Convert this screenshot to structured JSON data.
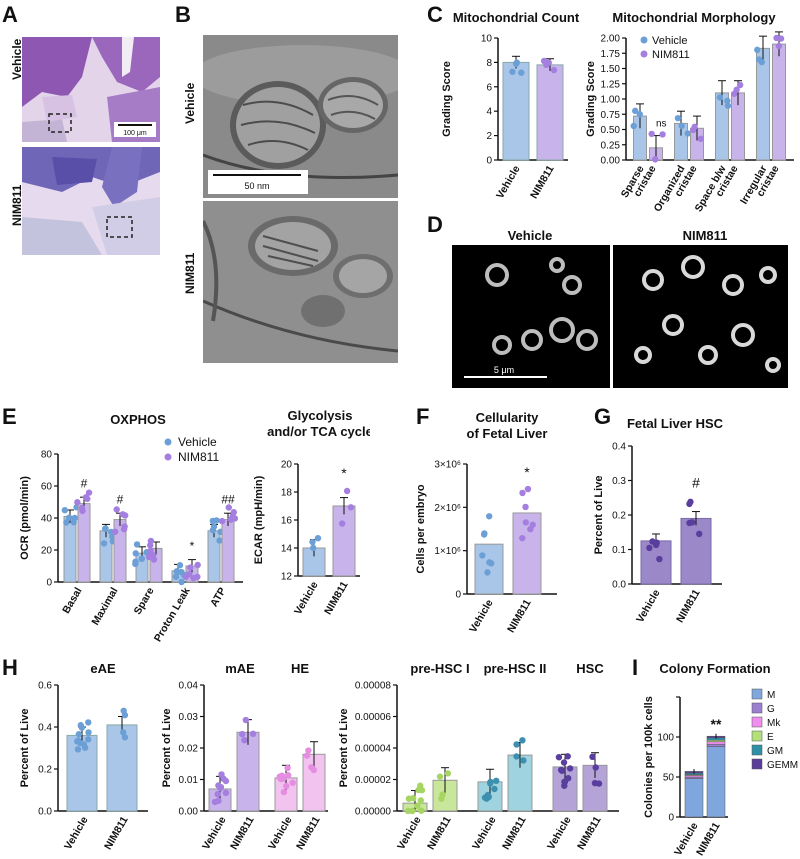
{
  "panels": {
    "A": {
      "letter": "A",
      "row_labels": [
        "Vehicle",
        "NIM811"
      ],
      "scale_bar": "100 μm"
    },
    "B": {
      "letter": "B",
      "row_labels": [
        "Vehicle",
        "NIM811"
      ],
      "scale_bar": "50 nm"
    },
    "C": {
      "letter": "C"
    },
    "D": {
      "letter": "D",
      "col_labels": [
        "Vehicle",
        "NIM811"
      ],
      "scale_bar": "5 μm"
    },
    "E": {
      "letter": "E"
    },
    "F": {
      "letter": "F"
    },
    "G": {
      "letter": "G"
    },
    "H": {
      "letter": "H"
    },
    "I": {
      "letter": "I"
    }
  },
  "colors": {
    "vehicle_blue": "#a9c6e8",
    "vehicle_dot": "#6b9fd6",
    "nim_purple": "#c8b4ea",
    "nim_dot": "#a47fe0",
    "he_pink": "#f3c3f0",
    "prehsc1_green": "#c9e79a",
    "prehsc2_teal": "#9fd3df",
    "hsc_purple": "#b3a3d6",
    "hsc_dot": "#5a3e9e",
    "g_purple": "#9b88c9"
  },
  "chart_data": [
    {
      "id": "C-count",
      "type": "bar",
      "title": "Mitochondrial Count",
      "categories": [
        "Vehicle",
        "NIM811"
      ],
      "values": [
        8.0,
        7.8
      ],
      "ylabel": "Grading Score",
      "ylim": [
        0,
        10
      ],
      "yticks": [
        "0",
        "2",
        "4",
        "6",
        "8",
        "10"
      ]
    },
    {
      "id": "C-morph",
      "type": "bar",
      "title": "Mitochondrial Morphology",
      "categories": [
        "Sparse cristae",
        "Organized cristae",
        "Space b/w cristae",
        "Irregular cristae"
      ],
      "series": [
        {
          "name": "Vehicle",
          "values": [
            0.72,
            0.6,
            1.1,
            1.83
          ]
        },
        {
          "name": "NIM811",
          "values": [
            0.2,
            0.52,
            1.1,
            1.9
          ]
        }
      ],
      "ylabel": "Grading Score",
      "ylim": [
        0,
        2.0
      ],
      "yticks": [
        "0.00",
        "0.25",
        "0.50",
        "0.75",
        "1.00",
        "1.25",
        "1.50",
        "1.75",
        "2.00"
      ],
      "annotations": [
        "ns"
      ],
      "legend": "top-left"
    },
    {
      "id": "E-oxphos",
      "type": "bar",
      "title": "OXPHOS",
      "categories": [
        "Basal",
        "Maximal",
        "Spare",
        "Proton Leak",
        "ATP"
      ],
      "series": [
        {
          "name": "Vehicle",
          "values": [
            41,
            32,
            18,
            7,
            32
          ]
        },
        {
          "name": "NIM811",
          "values": [
            49,
            39,
            21,
            10,
            39
          ]
        }
      ],
      "ylabel": "OCR (pmol/min)",
      "ylim": [
        0,
        80
      ],
      "yticks": [
        "0",
        "20",
        "40",
        "60",
        "80"
      ],
      "annotations": [
        "#",
        "#",
        "*",
        "##"
      ],
      "legend": "top-right"
    },
    {
      "id": "E-ecar",
      "type": "bar",
      "title": "Glycolysis and/or TCA cycle",
      "title_lines": [
        "Glycolysis",
        "and/or TCA cycle"
      ],
      "categories": [
        "Vehicle",
        "NIM811"
      ],
      "values": [
        14.0,
        17.0
      ],
      "ylabel": "ECAR (mpH/min)",
      "ylim": [
        12,
        20
      ],
      "yticks": [
        "12",
        "14",
        "16",
        "18",
        "20"
      ],
      "annotations": [
        "*"
      ]
    },
    {
      "id": "F",
      "type": "bar",
      "title": "Cellularity of Fetal Liver",
      "title_lines": [
        "Cellularity",
        "of Fetal Liver"
      ],
      "categories": [
        "Vehicle",
        "NIM811"
      ],
      "values": [
        1150000,
        1870000
      ],
      "ylabel": "Cells per embryo",
      "ylim": [
        0,
        3000000
      ],
      "yticks": [
        "0",
        "1×10⁶",
        "2×10⁶",
        "3×10⁶"
      ],
      "annotations": [
        "*"
      ]
    },
    {
      "id": "G",
      "type": "bar",
      "title": "Fetal Liver HSC",
      "categories": [
        "Vehicle",
        "NIM811"
      ],
      "values": [
        0.125,
        0.19
      ],
      "ylabel": "Percent of Live",
      "ylim": [
        0,
        0.4
      ],
      "yticks": [
        "0.0",
        "0.1",
        "0.2",
        "0.3",
        "0.4"
      ],
      "annotations": [
        "#"
      ]
    },
    {
      "id": "H-eAE",
      "type": "bar",
      "title": "eAE",
      "categories": [
        "Vehicle",
        "NIM811"
      ],
      "values": [
        0.36,
        0.41
      ],
      "ylabel": "Percent of Live",
      "ylim": [
        0,
        0.6
      ],
      "yticks": [
        "0.0",
        "0.2",
        "0.4",
        "0.6"
      ]
    },
    {
      "id": "H-mAE-HE",
      "type": "bar",
      "titles": [
        "mAE",
        "HE"
      ],
      "groups": [
        "mAE",
        "HE"
      ],
      "categories": [
        "Vehicle",
        "NIM811",
        "Vehicle",
        "NIM811"
      ],
      "values": [
        0.007,
        0.025,
        0.0105,
        0.018
      ],
      "ylabel": "Percent of Live",
      "ylim": [
        0,
        0.04
      ],
      "yticks": [
        "0.00",
        "0.01",
        "0.02",
        "0.03",
        "0.04"
      ]
    },
    {
      "id": "H-preHSC",
      "type": "bar",
      "titles": [
        "pre-HSC I",
        "pre-HSC II",
        "HSC"
      ],
      "groups": [
        "pre-HSC I",
        "pre-HSC II",
        "HSC"
      ],
      "categories": [
        "Vehicle",
        "NIM811",
        "Vehicle",
        "NIM811",
        "Vehicle",
        "NIM811"
      ],
      "values": [
        5e-06,
        1.95e-05,
        1.85e-05,
        3.55e-05,
        2.8e-05,
        2.9e-05
      ],
      "ylabel": "Percent of Live",
      "ylim": [
        0,
        8e-05
      ],
      "yticks": [
        "0.00000",
        "0.00002",
        "0.00004",
        "0.00006",
        "0.00008"
      ]
    },
    {
      "id": "I",
      "type": "bar",
      "title": "Colony Formation",
      "stacked": true,
      "categories": [
        "Vehicle",
        "NIM811"
      ],
      "series": [
        {
          "name": "M",
          "values": [
            48,
            88
          ]
        },
        {
          "name": "G",
          "values": [
            2,
            3
          ]
        },
        {
          "name": "Mk",
          "values": [
            2,
            3
          ]
        },
        {
          "name": "E",
          "values": [
            1,
            2
          ]
        },
        {
          "name": "GM",
          "values": [
            2,
            3
          ]
        },
        {
          "name": "GEMM",
          "values": [
            2,
            2
          ]
        }
      ],
      "ylabel": "Colonies per 100k cells",
      "ylim": [
        0,
        150
      ],
      "yticks": [
        "0",
        "50",
        "100"
      ],
      "annotations": [
        "**"
      ],
      "legend": "right"
    }
  ]
}
